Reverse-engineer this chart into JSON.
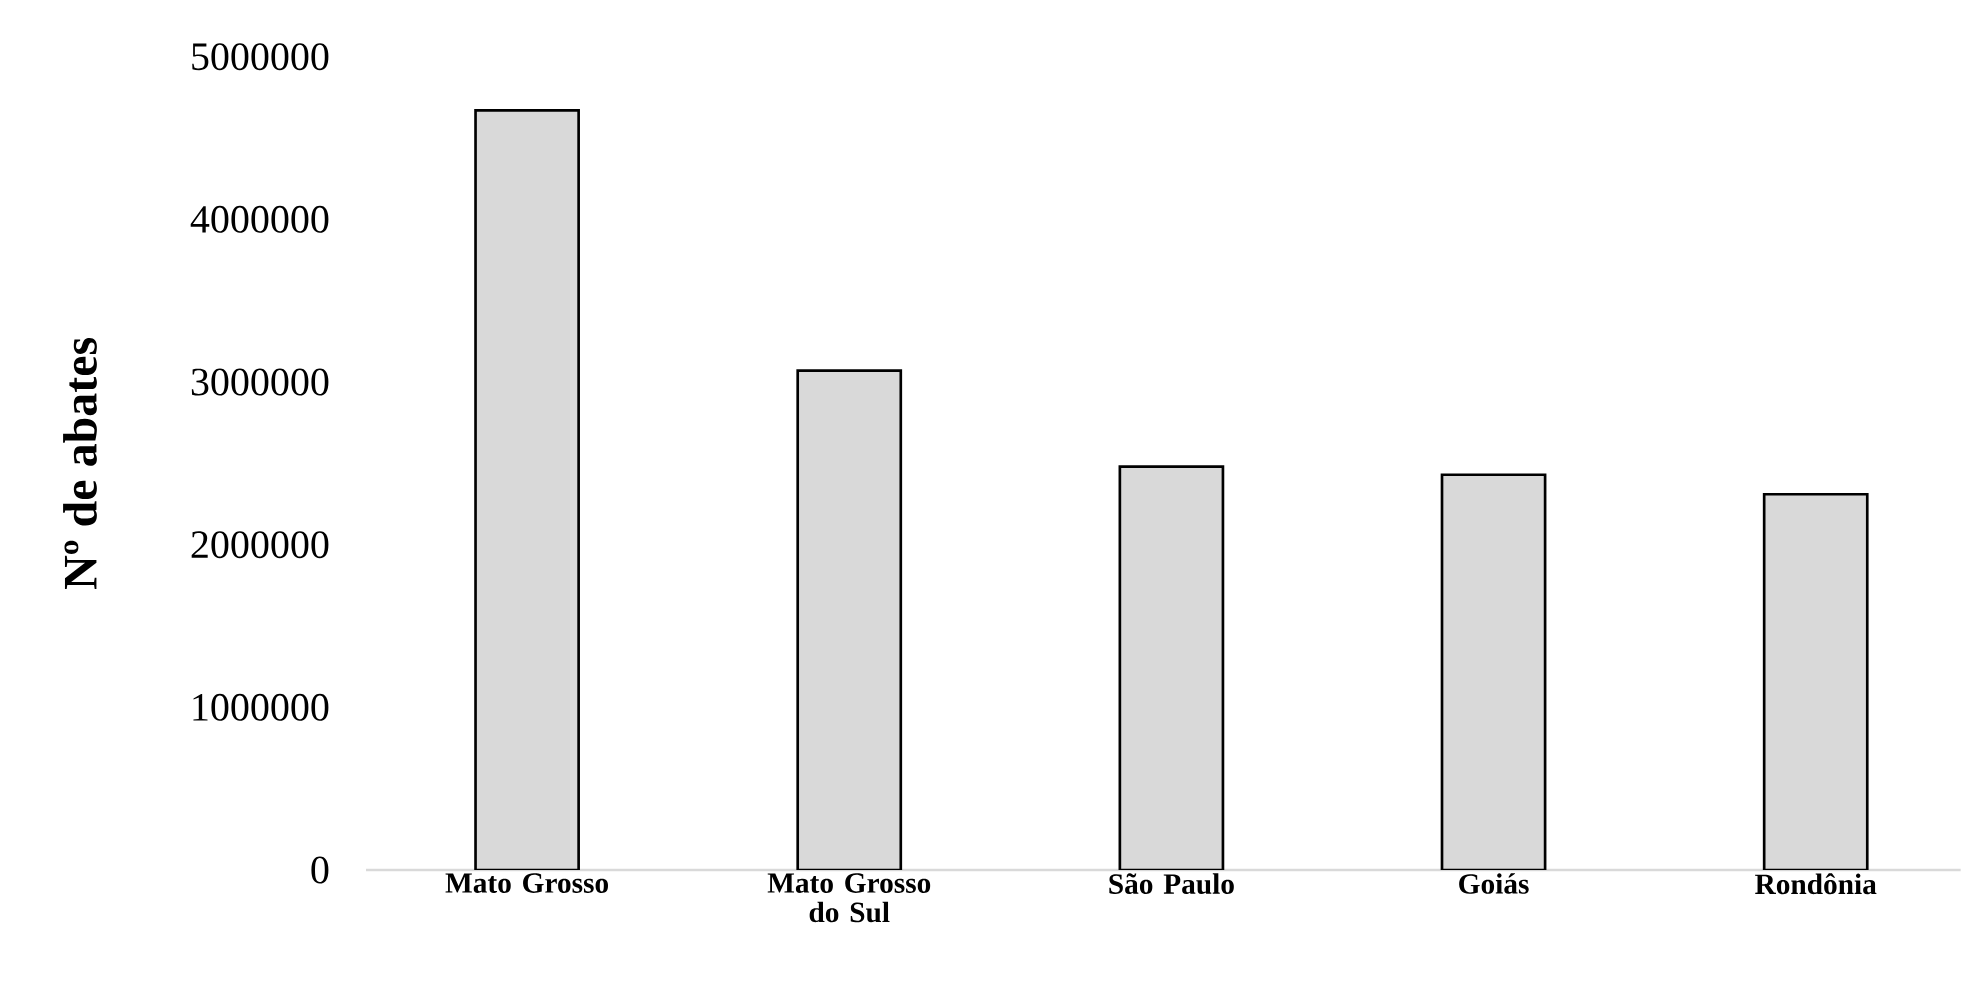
{
  "chart_data": {
    "type": "bar",
    "ylabel": "Nº de abates",
    "categories": [
      "Mato Grosso",
      "Mato Grosso do Sul",
      "São Paulo",
      "Goiás",
      "Rondônia"
    ],
    "values": [
      4670000,
      3070000,
      2480000,
      2430000,
      2310000
    ],
    "color": "#d9d9d9",
    "ylim": [
      0,
      5000000
    ],
    "yticks": [
      0,
      1000000,
      2000000,
      3000000,
      4000000,
      5000000
    ]
  }
}
